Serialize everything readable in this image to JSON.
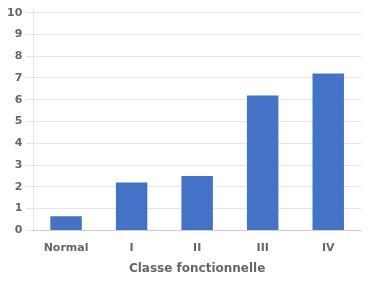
{
  "chart_data": {
    "type": "bar",
    "xlabel": "Classe fonctionnelle",
    "categories": [
      "Normal",
      "I",
      "II",
      "III",
      "IV"
    ],
    "values": [
      0.65,
      2.2,
      2.5,
      6.2,
      7.2
    ],
    "color": "#4472c4",
    "ylim": [
      0,
      10.14
    ],
    "yticks": [
      0,
      1,
      2,
      3,
      4,
      5,
      6,
      7,
      8,
      9,
      10
    ],
    "grid": true
  }
}
